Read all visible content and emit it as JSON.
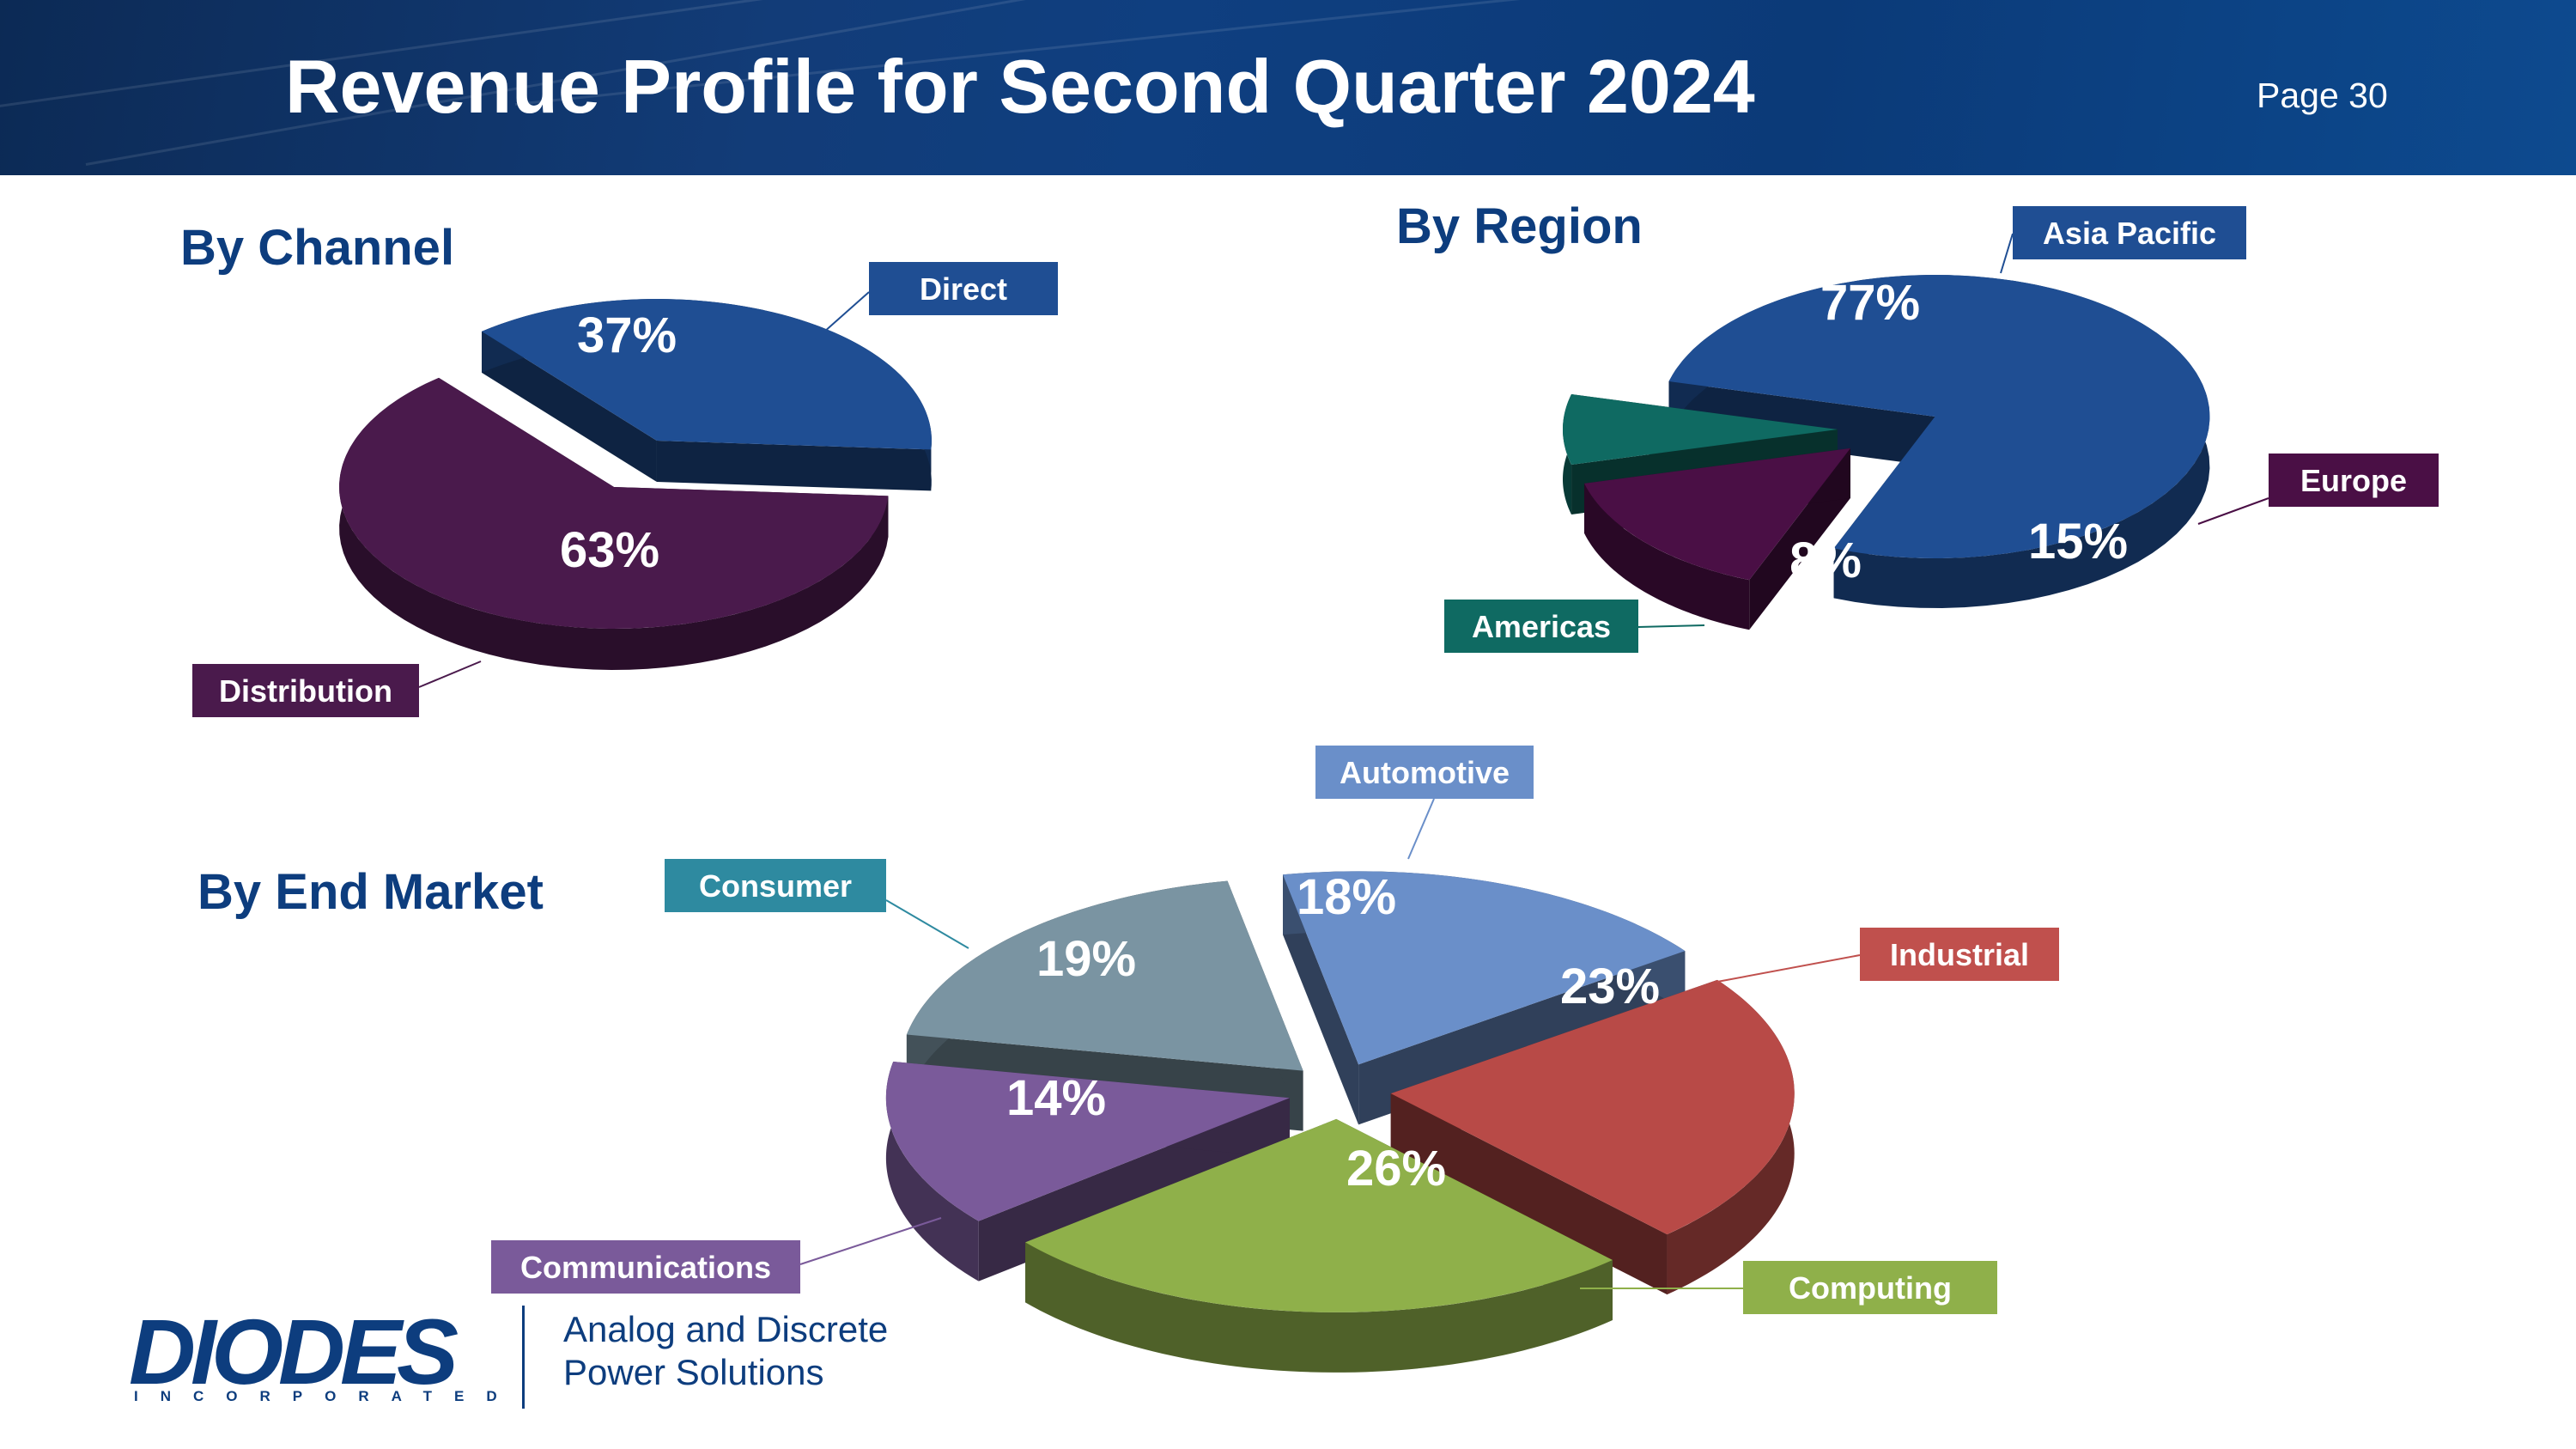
{
  "header": {
    "title": "Revenue Profile for Second Quarter 2024",
    "page": "Page 30"
  },
  "sections": {
    "channel": "By Channel",
    "region": "By Region",
    "market": "By End Market"
  },
  "colors": {
    "header": "#0f3f80",
    "title_text": "#0d3d7e",
    "direct": "#1f4e93",
    "distribution": "#4a1a4c",
    "asia_pacific": "#1f4e93",
    "europe": "#4a0f45",
    "americas": "#0f6a62",
    "automotive": "#6a8fc9",
    "industrial": "#b84a47",
    "computing": "#8fb04a",
    "communications": "#7a5a9a",
    "consumer": "#7a94a2",
    "consumer_label": "#2e8aa0"
  },
  "chart_data": [
    {
      "type": "pie",
      "title": "By Channel",
      "categories": [
        "Direct",
        "Distribution"
      ],
      "values": [
        37,
        63
      ],
      "value_labels": [
        "37%",
        "63%"
      ],
      "colors": [
        "#1f4e93",
        "#4a1a4c"
      ]
    },
    {
      "type": "pie",
      "title": "By Region",
      "categories": [
        "Asia Pacific",
        "Europe",
        "Americas"
      ],
      "values": [
        77,
        15,
        8
      ],
      "value_labels": [
        "77%",
        "15%",
        "8%"
      ],
      "colors": [
        "#1f4e93",
        "#4a0f45",
        "#0f6a62"
      ]
    },
    {
      "type": "pie",
      "title": "By End Market",
      "categories": [
        "Automotive",
        "Industrial",
        "Computing",
        "Communications",
        "Consumer"
      ],
      "values": [
        18,
        23,
        26,
        14,
        19
      ],
      "value_labels": [
        "18%",
        "23%",
        "26%",
        "14%",
        "19%"
      ],
      "colors": [
        "#6a8fc9",
        "#b84a47",
        "#8fb04a",
        "#7a5a9a",
        "#7a94a2"
      ],
      "label_colors": [
        "#6a8fc9",
        "#c0504d",
        "#8fb04a",
        "#7a5a9a",
        "#2e8aa0"
      ]
    }
  ],
  "logo": {
    "wordmark": "DIODES",
    "sub": "INCORPORATED",
    "tagline_1": "Analog and Discrete",
    "tagline_2": "Power Solutions"
  }
}
